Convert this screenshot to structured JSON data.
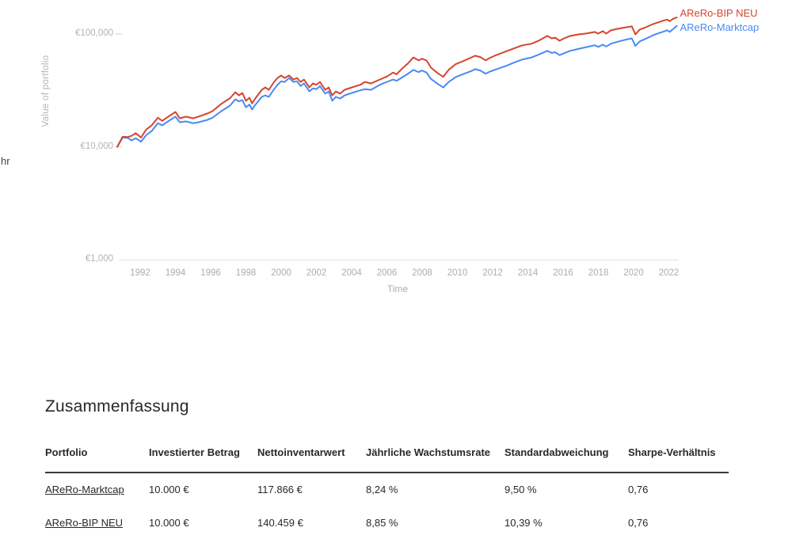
{
  "page": {
    "left_clipped_text": "hr"
  },
  "chart_data": {
    "type": "line",
    "title": "",
    "xlabel": "Time",
    "ylabel": "Value of portfolio",
    "grid": "off",
    "legend_position": "line-end-labels",
    "x_axis": {
      "ticks": [
        1992,
        1994,
        1996,
        1998,
        2000,
        2002,
        2004,
        2006,
        2008,
        2010,
        2012,
        2014,
        2016,
        2018,
        2020,
        2022
      ],
      "range": [
        1990.7,
        2022.6
      ]
    },
    "y_axis": {
      "scale": "log",
      "range": [
        1000,
        170000
      ],
      "ticks": [
        {
          "label": "€100,000",
          "value": 100000
        },
        {
          "label": "€10,000",
          "value": 10000
        },
        {
          "label": "€1,000",
          "value": 1000
        }
      ]
    },
    "axis_color": "#e2e2e2",
    "series": [
      {
        "name": "AReRo-BIP NEU",
        "color": "#d5452d",
        "points": [
          [
            1990.7,
            10000
          ],
          [
            1991.0,
            12300
          ],
          [
            1991.3,
            12200
          ],
          [
            1991.5,
            12500
          ],
          [
            1991.75,
            13200
          ],
          [
            1992.05,
            12100
          ],
          [
            1992.35,
            14300
          ],
          [
            1992.65,
            15500
          ],
          [
            1993.0,
            18100
          ],
          [
            1993.25,
            17000
          ],
          [
            1993.5,
            18100
          ],
          [
            1994.0,
            20400
          ],
          [
            1994.25,
            17900
          ],
          [
            1994.6,
            18500
          ],
          [
            1995.0,
            17900
          ],
          [
            1995.3,
            18500
          ],
          [
            1995.8,
            19700
          ],
          [
            1996.1,
            20700
          ],
          [
            1996.6,
            24000
          ],
          [
            1997.1,
            27000
          ],
          [
            1997.4,
            30500
          ],
          [
            1997.6,
            28600
          ],
          [
            1997.8,
            30000
          ],
          [
            1998.0,
            25600
          ],
          [
            1998.2,
            27200
          ],
          [
            1998.35,
            24300
          ],
          [
            1998.5,
            26400
          ],
          [
            1998.9,
            32000
          ],
          [
            1999.1,
            33600
          ],
          [
            1999.3,
            32000
          ],
          [
            1999.6,
            37600
          ],
          [
            1999.8,
            40800
          ],
          [
            2000.0,
            42900
          ],
          [
            2000.2,
            40800
          ],
          [
            2000.45,
            42900
          ],
          [
            2000.7,
            39500
          ],
          [
            2000.9,
            40800
          ],
          [
            2001.1,
            37600
          ],
          [
            2001.3,
            39500
          ],
          [
            2001.6,
            33600
          ],
          [
            2001.8,
            36500
          ],
          [
            2002.0,
            35500
          ],
          [
            2002.2,
            37600
          ],
          [
            2002.5,
            32000
          ],
          [
            2002.7,
            33600
          ],
          [
            2002.9,
            28600
          ],
          [
            2003.1,
            31000
          ],
          [
            2003.35,
            29600
          ],
          [
            2003.6,
            32000
          ],
          [
            2004.0,
            33600
          ],
          [
            2004.5,
            35500
          ],
          [
            2004.75,
            37600
          ],
          [
            2005.1,
            36500
          ],
          [
            2005.6,
            39500
          ],
          [
            2006.0,
            42000
          ],
          [
            2006.35,
            45500
          ],
          [
            2006.55,
            44000
          ],
          [
            2006.9,
            50000
          ],
          [
            2007.2,
            55000
          ],
          [
            2007.5,
            62000
          ],
          [
            2007.8,
            58500
          ],
          [
            2008.0,
            60400
          ],
          [
            2008.25,
            58300
          ],
          [
            2008.5,
            50400
          ],
          [
            2008.9,
            44800
          ],
          [
            2009.2,
            41700
          ],
          [
            2009.5,
            48100
          ],
          [
            2009.9,
            54000
          ],
          [
            2010.3,
            57300
          ],
          [
            2010.8,
            62000
          ],
          [
            2011.0,
            64200
          ],
          [
            2011.3,
            62500
          ],
          [
            2011.6,
            58500
          ],
          [
            2011.85,
            61500
          ],
          [
            2012.1,
            64000
          ],
          [
            2012.8,
            70500
          ],
          [
            2013.3,
            75500
          ],
          [
            2013.7,
            79500
          ],
          [
            2014.2,
            82000
          ],
          [
            2014.6,
            87000
          ],
          [
            2015.1,
            96200
          ],
          [
            2015.35,
            91500
          ],
          [
            2015.55,
            92900
          ],
          [
            2015.8,
            87200
          ],
          [
            2016.05,
            91500
          ],
          [
            2016.4,
            96200
          ],
          [
            2016.9,
            99400
          ],
          [
            2017.3,
            101000
          ],
          [
            2017.8,
            104300
          ],
          [
            2018.0,
            101000
          ],
          [
            2018.25,
            106000
          ],
          [
            2018.45,
            101000
          ],
          [
            2018.7,
            107800
          ],
          [
            2019.1,
            111300
          ],
          [
            2019.6,
            114900
          ],
          [
            2019.9,
            116800
          ],
          [
            2020.1,
            99400
          ],
          [
            2020.35,
            109600
          ],
          [
            2020.7,
            114900
          ],
          [
            2021.1,
            122600
          ],
          [
            2021.4,
            127000
          ],
          [
            2021.65,
            131000
          ],
          [
            2021.9,
            134500
          ],
          [
            2022.05,
            130000
          ],
          [
            2022.25,
            136500
          ],
          [
            2022.45,
            140459
          ]
        ]
      },
      {
        "name": "AReRo-Marktcap",
        "color": "#4a8af4",
        "points": [
          [
            1990.7,
            10000
          ],
          [
            1991.0,
            12100
          ],
          [
            1991.3,
            12000
          ],
          [
            1991.5,
            11400
          ],
          [
            1991.75,
            11900
          ],
          [
            1992.05,
            11100
          ],
          [
            1992.35,
            12750
          ],
          [
            1992.65,
            13800
          ],
          [
            1993.0,
            16200
          ],
          [
            1993.25,
            15500
          ],
          [
            1993.5,
            16500
          ],
          [
            1994.0,
            18500
          ],
          [
            1994.25,
            16500
          ],
          [
            1994.6,
            16800
          ],
          [
            1995.0,
            16200
          ],
          [
            1995.3,
            16500
          ],
          [
            1995.8,
            17300
          ],
          [
            1996.1,
            18100
          ],
          [
            1996.6,
            20700
          ],
          [
            1997.1,
            23200
          ],
          [
            1997.4,
            26400
          ],
          [
            1997.6,
            25300
          ],
          [
            1997.8,
            26000
          ],
          [
            1998.0,
            22400
          ],
          [
            1998.2,
            23700
          ],
          [
            1998.35,
            21400
          ],
          [
            1998.5,
            23200
          ],
          [
            1998.9,
            27700
          ],
          [
            1999.1,
            28600
          ],
          [
            1999.3,
            27700
          ],
          [
            1999.6,
            32500
          ],
          [
            1999.8,
            35500
          ],
          [
            2000.0,
            38100
          ],
          [
            2000.2,
            37600
          ],
          [
            2000.45,
            40800
          ],
          [
            2000.7,
            37600
          ],
          [
            2000.9,
            38100
          ],
          [
            2001.1,
            34600
          ],
          [
            2001.3,
            36500
          ],
          [
            2001.6,
            31000
          ],
          [
            2001.8,
            33000
          ],
          [
            2002.0,
            32500
          ],
          [
            2002.2,
            34600
          ],
          [
            2002.5,
            29600
          ],
          [
            2002.7,
            31000
          ],
          [
            2002.9,
            25600
          ],
          [
            2003.1,
            27700
          ],
          [
            2003.35,
            26800
          ],
          [
            2003.6,
            28600
          ],
          [
            2004.0,
            30000
          ],
          [
            2004.5,
            31700
          ],
          [
            2004.75,
            32500
          ],
          [
            2005.1,
            32000
          ],
          [
            2005.6,
            35500
          ],
          [
            2006.0,
            37600
          ],
          [
            2006.35,
            39500
          ],
          [
            2006.55,
            38500
          ],
          [
            2006.9,
            41500
          ],
          [
            2007.2,
            44500
          ],
          [
            2007.5,
            48100
          ],
          [
            2007.8,
            46000
          ],
          [
            2008.0,
            47500
          ],
          [
            2008.25,
            45500
          ],
          [
            2008.5,
            40000
          ],
          [
            2008.9,
            36000
          ],
          [
            2009.2,
            33600
          ],
          [
            2009.5,
            37500
          ],
          [
            2009.9,
            41500
          ],
          [
            2010.3,
            44000
          ],
          [
            2010.8,
            47000
          ],
          [
            2011.0,
            48800
          ],
          [
            2011.3,
            47500
          ],
          [
            2011.6,
            44500
          ],
          [
            2011.85,
            46500
          ],
          [
            2012.1,
            48000
          ],
          [
            2012.8,
            52500
          ],
          [
            2013.3,
            56500
          ],
          [
            2013.7,
            59500
          ],
          [
            2014.2,
            62000
          ],
          [
            2014.6,
            65500
          ],
          [
            2015.1,
            71000
          ],
          [
            2015.35,
            68000
          ],
          [
            2015.55,
            69000
          ],
          [
            2015.8,
            65000
          ],
          [
            2016.05,
            67500
          ],
          [
            2016.4,
            71000
          ],
          [
            2016.9,
            74000
          ],
          [
            2017.3,
            76500
          ],
          [
            2017.8,
            79500
          ],
          [
            2018.0,
            77000
          ],
          [
            2018.25,
            80500
          ],
          [
            2018.45,
            77500
          ],
          [
            2018.7,
            82000
          ],
          [
            2019.1,
            85500
          ],
          [
            2019.6,
            89500
          ],
          [
            2019.9,
            91500
          ],
          [
            2020.1,
            78500
          ],
          [
            2020.35,
            86000
          ],
          [
            2020.7,
            91000
          ],
          [
            2021.1,
            97500
          ],
          [
            2021.4,
            101500
          ],
          [
            2021.65,
            104500
          ],
          [
            2021.9,
            108000
          ],
          [
            2022.05,
            104500
          ],
          [
            2022.25,
            111000
          ],
          [
            2022.45,
            117866
          ]
        ]
      }
    ]
  },
  "summary": {
    "title": "Zusammenfassung",
    "columns": [
      "Portfolio",
      "Investierter Betrag",
      "Nettoinventarwert",
      "Jährliche Wachstumsrate",
      "Standardabweichung",
      "Sharpe-Verhältnis"
    ],
    "rows": [
      {
        "portfolio": "AReRo-Marktcap",
        "invested": "10.000 €",
        "nav": "117.866 €",
        "cagr": "8,24 %",
        "stddev": "9,50 %",
        "sharpe": "0,76"
      },
      {
        "portfolio": "AReRo-BIP NEU",
        "invested": "10.000 €",
        "nav": "140.459 €",
        "cagr": "8,85 %",
        "stddev": "10,39 %",
        "sharpe": "0,76"
      }
    ]
  }
}
